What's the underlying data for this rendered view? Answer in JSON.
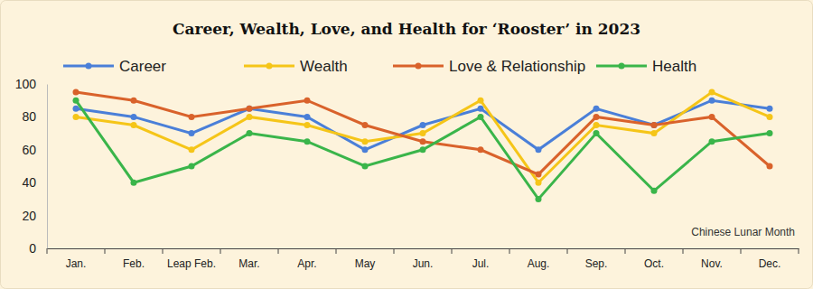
{
  "chart_data": {
    "type": "line",
    "title": "Career, Wealth, Love, and Health for ‘Rooster’ in 2023",
    "categories": [
      "Jan.",
      "Feb.",
      "Leap Feb.",
      "Mar.",
      "Apr.",
      "May",
      "Jun.",
      "Jul.",
      "Aug.",
      "Sep.",
      "Oct.",
      "Nov.",
      "Dec."
    ],
    "series": [
      {
        "name": "Career",
        "color": "#4a7fd8",
        "values": [
          85,
          80,
          70,
          85,
          80,
          60,
          75,
          85,
          60,
          85,
          75,
          90,
          85
        ]
      },
      {
        "name": "Wealth",
        "color": "#f5c518",
        "values": [
          80,
          75,
          60,
          80,
          75,
          65,
          70,
          90,
          40,
          75,
          70,
          95,
          80
        ]
      },
      {
        "name": "Love & Relationship",
        "color": "#d9622b",
        "values": [
          95,
          90,
          80,
          85,
          90,
          75,
          65,
          60,
          45,
          80,
          75,
          80,
          50
        ]
      },
      {
        "name": "Health",
        "color": "#3ab54a",
        "values": [
          90,
          40,
          50,
          70,
          65,
          50,
          60,
          80,
          30,
          70,
          35,
          65,
          70
        ]
      }
    ],
    "annotation": "Chinese Lunar Month",
    "ylim": [
      0,
      100
    ],
    "yticks": [
      0,
      20,
      40,
      60,
      80,
      100
    ],
    "grid": false,
    "legend": "top",
    "marker": "circle"
  }
}
